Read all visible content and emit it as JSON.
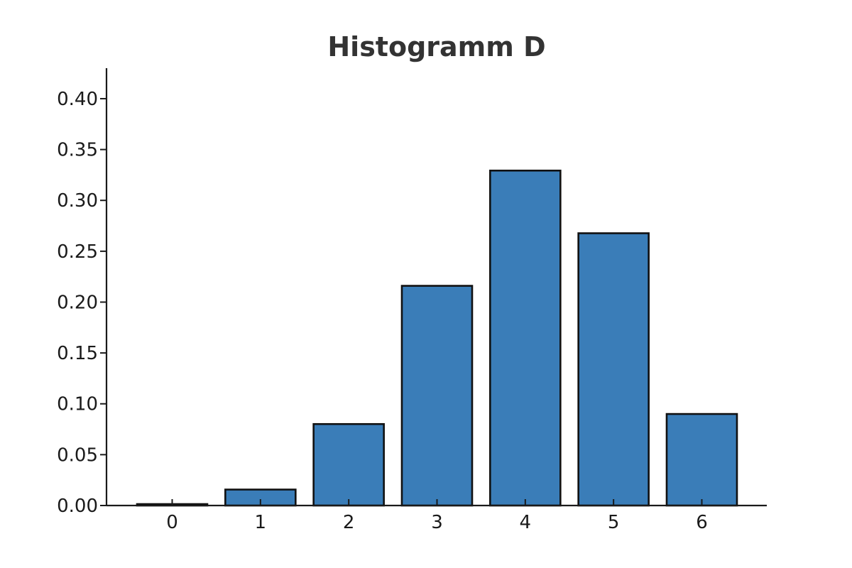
{
  "chart_data": {
    "type": "bar",
    "title": "Histogramm D",
    "xlabel": "",
    "ylabel": "",
    "categories": [
      "0",
      "1",
      "2",
      "3",
      "4",
      "5",
      "6"
    ],
    "values": [
      0.0014,
      0.0157,
      0.0801,
      0.216,
      0.3293,
      0.2677,
      0.09
    ],
    "ylim": [
      0,
      0.43
    ],
    "yticks": [
      "0.00",
      "0.05",
      "0.10",
      "0.15",
      "0.20",
      "0.25",
      "0.30",
      "0.35",
      "0.40"
    ],
    "grid": false,
    "legend": "none",
    "bar_color": "#3a7db8",
    "edge_color": "#111111"
  }
}
